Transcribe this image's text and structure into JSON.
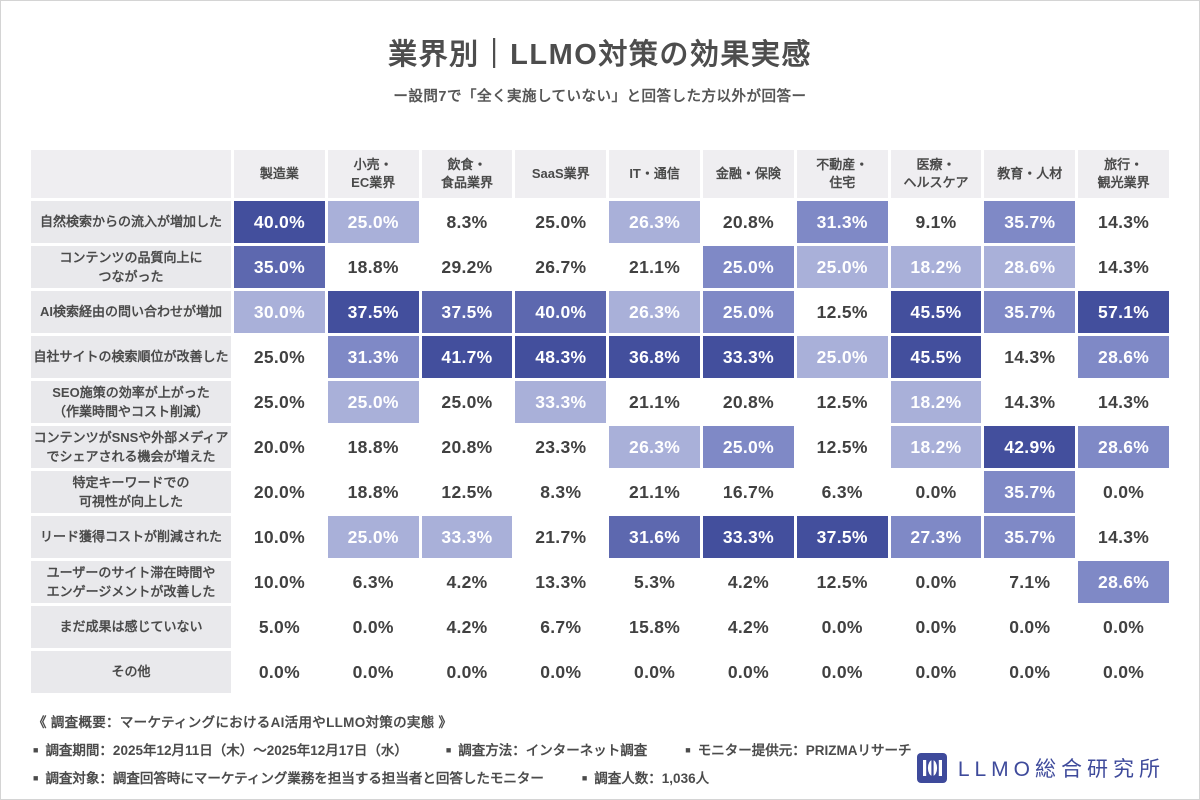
{
  "title": "業界別｜LLMO対策の効果実感",
  "subtitle": "ー設問7で「全く実施していない」と回答した方以外が回答ー",
  "chart_data": {
    "type": "heatmap",
    "title": "業界別｜LLMO対策の効果実感",
    "subtitle": "ー設問7で「全く実施していない」と回答した方以外が回答ー",
    "value_unit": "%",
    "columns": [
      "製造業",
      "小売・\nEC業界",
      "飲食・\n食品業界",
      "SaaS業界",
      "IT・通信",
      "金融・保険",
      "不動産・\n住宅",
      "医療・\nヘルスケア",
      "教育・人材",
      "旅行・\n観光業界"
    ],
    "rows": [
      {
        "label": "自然検索からの流入が増加した",
        "values": [
          40.0,
          25.0,
          8.3,
          25.0,
          26.3,
          20.8,
          31.3,
          9.1,
          35.7,
          14.3
        ],
        "tiers": [
          4,
          1,
          0,
          0,
          1,
          0,
          2,
          0,
          2,
          0
        ]
      },
      {
        "label": "コンテンツの品質向上に\nつながった",
        "values": [
          35.0,
          18.8,
          29.2,
          26.7,
          21.1,
          25.0,
          25.0,
          18.2,
          28.6,
          14.3
        ],
        "tiers": [
          3,
          0,
          0,
          0,
          0,
          2,
          1,
          1,
          1,
          0
        ]
      },
      {
        "label": "AI検索経由の問い合わせが増加",
        "values": [
          30.0,
          37.5,
          37.5,
          40.0,
          26.3,
          25.0,
          12.5,
          45.5,
          35.7,
          57.1
        ],
        "tiers": [
          1,
          4,
          3,
          3,
          1,
          2,
          0,
          4,
          2,
          4
        ]
      },
      {
        "label": "自社サイトの検索順位が改善した",
        "values": [
          25.0,
          31.3,
          41.7,
          48.3,
          36.8,
          33.3,
          25.0,
          45.5,
          14.3,
          28.6
        ],
        "tiers": [
          0,
          2,
          4,
          4,
          4,
          4,
          1,
          4,
          0,
          2
        ]
      },
      {
        "label": "SEO施策の効率が上がった\n（作業時間やコスト削減）",
        "values": [
          25.0,
          25.0,
          25.0,
          33.3,
          21.1,
          20.8,
          12.5,
          18.2,
          14.3,
          14.3
        ],
        "tiers": [
          0,
          1,
          0,
          1,
          0,
          0,
          0,
          1,
          0,
          0
        ]
      },
      {
        "label": "コンテンツがSNSや外部メディア\nでシェアされる機会が増えた",
        "values": [
          20.0,
          18.8,
          20.8,
          23.3,
          26.3,
          25.0,
          12.5,
          18.2,
          42.9,
          28.6
        ],
        "tiers": [
          0,
          0,
          0,
          0,
          1,
          2,
          0,
          1,
          4,
          2
        ]
      },
      {
        "label": "特定キーワードでの\n可視性が向上した",
        "values": [
          20.0,
          18.8,
          12.5,
          8.3,
          21.1,
          16.7,
          6.3,
          0.0,
          35.7,
          0.0
        ],
        "tiers": [
          0,
          0,
          0,
          0,
          0,
          0,
          0,
          0,
          2,
          0
        ]
      },
      {
        "label": "リード獲得コストが削減された",
        "values": [
          10.0,
          25.0,
          33.3,
          21.7,
          31.6,
          33.3,
          37.5,
          27.3,
          35.7,
          14.3
        ],
        "tiers": [
          0,
          1,
          1,
          0,
          3,
          4,
          4,
          2,
          2,
          0
        ]
      },
      {
        "label": "ユーザーのサイト滞在時間や\nエンゲージメントが改善した",
        "values": [
          10.0,
          6.3,
          4.2,
          13.3,
          5.3,
          4.2,
          12.5,
          0.0,
          7.1,
          28.6
        ],
        "tiers": [
          0,
          0,
          0,
          0,
          0,
          0,
          0,
          0,
          0,
          2
        ]
      },
      {
        "label": "まだ成果は感じていない",
        "values": [
          5.0,
          0.0,
          4.2,
          6.7,
          15.8,
          4.2,
          0.0,
          0.0,
          0.0,
          0.0
        ],
        "tiers": [
          0,
          0,
          0,
          0,
          0,
          0,
          0,
          0,
          0,
          0
        ]
      },
      {
        "label": "その他",
        "values": [
          0.0,
          0.0,
          0.0,
          0.0,
          0.0,
          0.0,
          0.0,
          0.0,
          0.0,
          0.0
        ],
        "tiers": [
          0,
          0,
          0,
          0,
          0,
          0,
          0,
          0,
          0,
          0
        ]
      }
    ],
    "tier_colors": [
      "#ffffff",
      "#a9b0d9",
      "#7f89c6",
      "#5d68af",
      "#434f9d"
    ],
    "tier_text_colors": [
      "#414141",
      "#ffffff",
      "#ffffff",
      "#ffffff",
      "#ffffff"
    ],
    "layout": {
      "legend": "none",
      "grid_gap_color": "#ffffff",
      "header_bg": "#efeef1",
      "label_bg": "#e9e9ec"
    }
  },
  "footer": {
    "bullet": "■",
    "overview": "《 調査概要：マーケティングにおけるAI活用やLLMO対策の実態 》",
    "line2_items": [
      "調査期間：2025年12月11日（木）〜2025年12月17日（水）",
      "調査方法：インターネット調査",
      "モニター提供元：PRIZMAリサーチ"
    ],
    "line3_items": [
      "調査対象：調査回答時にマーケティング業務を担当する担当者と回答したモニター",
      "調査人数：1,036人"
    ]
  },
  "logo": {
    "text": "LLMO総合研究所",
    "color": "#3e4a9b"
  }
}
